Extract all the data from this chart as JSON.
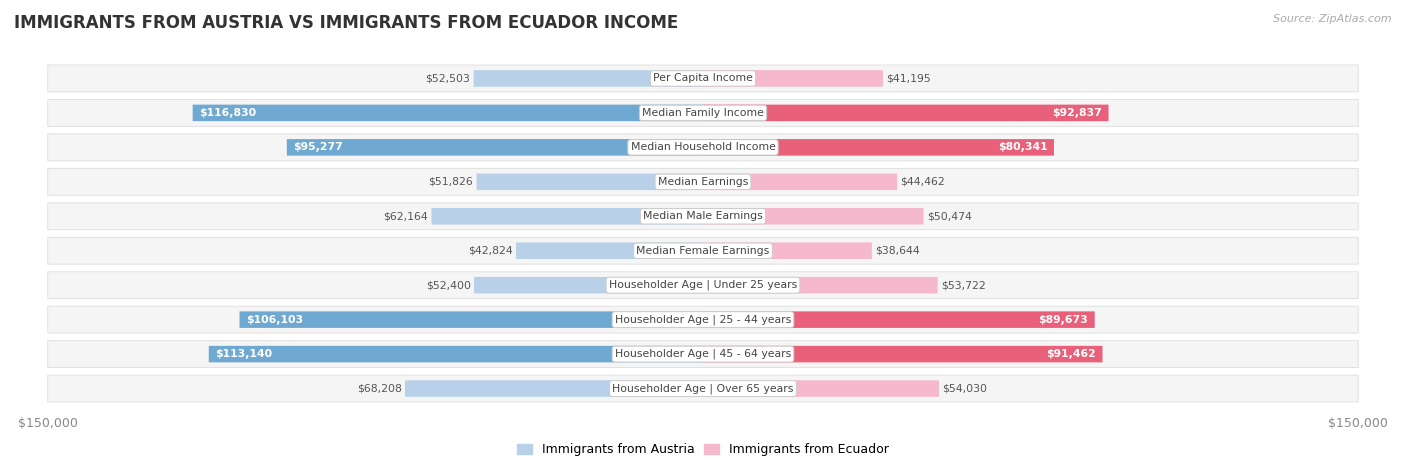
{
  "title": "IMMIGRANTS FROM AUSTRIA VS IMMIGRANTS FROM ECUADOR INCOME",
  "source": "Source: ZipAtlas.com",
  "categories": [
    "Per Capita Income",
    "Median Family Income",
    "Median Household Income",
    "Median Earnings",
    "Median Male Earnings",
    "Median Female Earnings",
    "Householder Age | Under 25 years",
    "Householder Age | 25 - 44 years",
    "Householder Age | 45 - 64 years",
    "Householder Age | Over 65 years"
  ],
  "austria_values": [
    52503,
    116830,
    95277,
    51826,
    62164,
    42824,
    52400,
    106103,
    113140,
    68208
  ],
  "ecuador_values": [
    41195,
    92837,
    80341,
    44462,
    50474,
    38644,
    53722,
    89673,
    91462,
    54030
  ],
  "austria_color_light": "#b8d0e8",
  "austria_color_dark": "#6fa8d0",
  "ecuador_color_light": "#f5b8cc",
  "ecuador_color_dark": "#e8607a",
  "max_value": 150000,
  "threshold": 0.5,
  "austria_legend": "Immigrants from Austria",
  "ecuador_legend": "Immigrants from Ecuador",
  "background_color": "#ffffff",
  "row_fill": "#f5f5f5",
  "row_edge": "#dddddd",
  "label_box_fill": "#ffffff",
  "label_box_edge": "#cccccc",
  "title_color": "#333333",
  "source_color": "#aaaaaa",
  "outside_label_color": "#555555",
  "inside_label_color": "#ffffff",
  "axis_tick_color": "#888888"
}
